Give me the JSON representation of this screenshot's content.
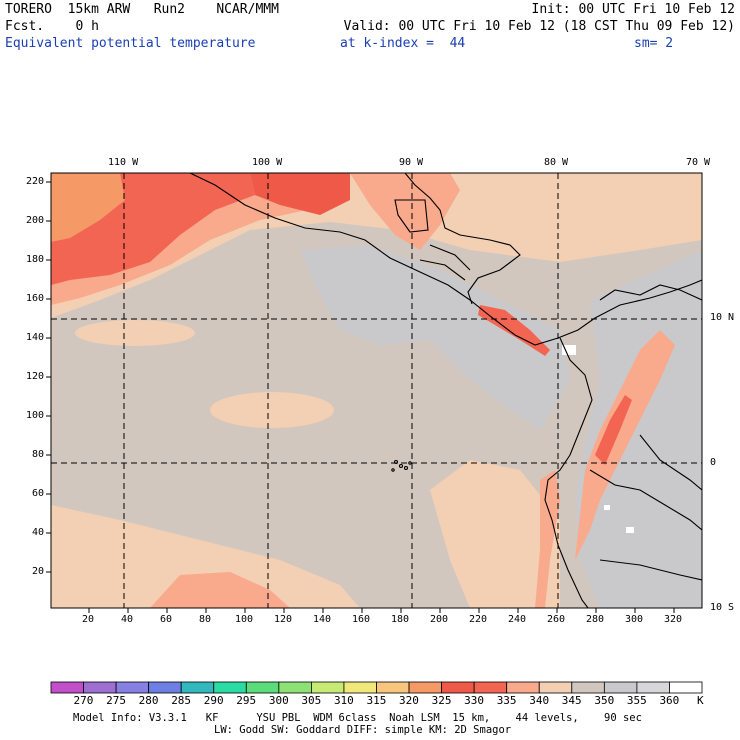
{
  "header": {
    "left_line1": "TORERO  15km ARW   Run2    NCAR/MMM",
    "left_line2": "Fcst.    0 h",
    "right_line1": "Init: 00 UTC Fri 10 Feb 12",
    "right_line2": "Valid: 00 UTC Fri 10 Feb 12 (18 CST Thu 09 Feb 12)",
    "field": "Equivalent potential temperature",
    "kindex": "at k-index =  44",
    "smooth": "sm= 2"
  },
  "map": {
    "top_lon_labels": [
      "110 W",
      "100 W",
      "90 W",
      "80 W",
      "70 W"
    ],
    "right_lat_labels": [
      "10 N",
      "0",
      "10 S"
    ],
    "y_ticks": [
      "220",
      "200",
      "180",
      "160",
      "140",
      "120",
      "100",
      "80",
      "60",
      "40",
      "20"
    ],
    "x_ticks": [
      "20",
      "40",
      "60",
      "80",
      "100",
      "120",
      "140",
      "160",
      "180",
      "200",
      "220",
      "240",
      "260",
      "280",
      "300",
      "320"
    ],
    "grid": "dashed"
  },
  "colorbar": {
    "labels": [
      "270",
      "275",
      "280",
      "285",
      "290",
      "295",
      "300",
      "305",
      "310",
      "315",
      "320",
      "325",
      "330",
      "335",
      "340",
      "345",
      "350",
      "355",
      "360"
    ],
    "unit": "K",
    "colors": [
      "#c14fc9",
      "#9d6fd3",
      "#8780e3",
      "#6d7fe3",
      "#33b8c0",
      "#2bdba1",
      "#5bdc7a",
      "#8ee174",
      "#c6ea73",
      "#f0e87a",
      "#f7c67c",
      "#f59a66",
      "#ef5a48",
      "#f36553",
      "#f9a98c",
      "#f3cfb4",
      "#d2c7bf",
      "#c9c9cb",
      "#d7d7d9",
      "#ffffff"
    ]
  },
  "footer": {
    "line1": "Model Info: V3.3.1   KF      YSU PBL  WDM 6class  Noah LSM  15 km,    44 levels,    90 sec",
    "line2": "LW: Godd SW: Goddard DIFF: simple KM: 2D Smagor"
  },
  "palette": {
    "ocean_main": "#d2c7bf",
    "cool": "#c9c9cb",
    "warm_light": "#f3cfb4",
    "warm": "#f9a98c",
    "hot": "#f36553",
    "hotter": "#ef5a48",
    "orange": "#f59a66",
    "white": "#ffffff",
    "coast": "#000000"
  }
}
